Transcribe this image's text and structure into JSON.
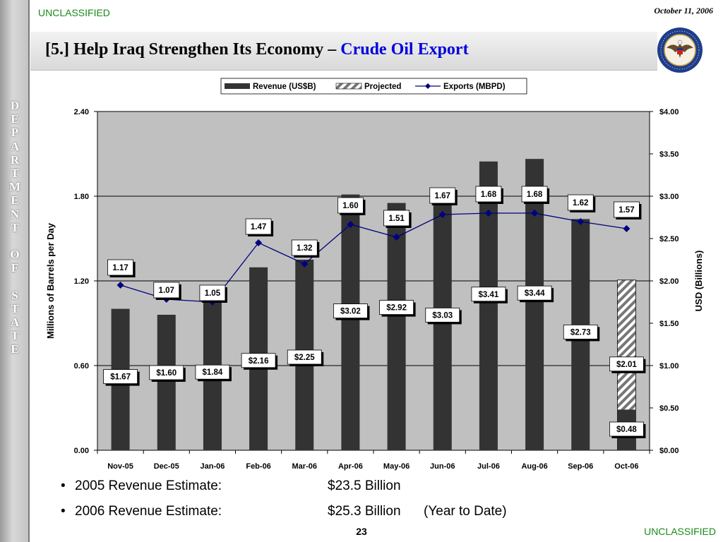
{
  "header": {
    "classification": "UNCLASSIFIED",
    "date": "October 11, 2006",
    "title_main": "[5.] Help Iraq Strengthen Its Economy – ",
    "title_accent": "Crude Oil Export"
  },
  "sidebar": {
    "letters": [
      "D",
      "E",
      "P",
      "A",
      "R",
      "T",
      "M",
      "E",
      "N",
      "T",
      "",
      "O",
      "F",
      "",
      "S",
      "T",
      "A",
      "T",
      "E"
    ]
  },
  "chart_data": {
    "type": "bar",
    "categories": [
      "Nov-05",
      "Dec-05",
      "Jan-06",
      "Feb-06",
      "Mar-06",
      "Apr-06",
      "May-06",
      "Jun-06",
      "Jul-06",
      "Aug-06",
      "Sep-06",
      "Oct-06"
    ],
    "revenue_labels": [
      "$1.67",
      "$1.60",
      "$1.84",
      "$2.16",
      "$2.25",
      "$3.02",
      "$2.92",
      "$3.03",
      "$3.41",
      "$3.44",
      "$2.73",
      "$0.48"
    ],
    "export_labels": [
      "1.17",
      "1.07",
      "1.05",
      "1.47",
      "1.32",
      "1.60",
      "1.51",
      "1.67",
      "1.68",
      "1.68",
      "1.62",
      "1.57"
    ],
    "projected_label": "$2.01",
    "series": [
      {
        "name": "Revenue (US$B)",
        "axis": "right",
        "values": [
          1.67,
          1.6,
          1.84,
          2.16,
          2.25,
          3.02,
          2.92,
          3.03,
          3.41,
          3.44,
          2.73,
          0.48
        ]
      },
      {
        "name": "Projected",
        "axis": "right",
        "values": [
          null,
          null,
          null,
          null,
          null,
          null,
          null,
          null,
          null,
          null,
          null,
          2.01
        ]
      },
      {
        "name": "Exports (MBPD)",
        "axis": "left",
        "values": [
          1.17,
          1.07,
          1.05,
          1.47,
          1.32,
          1.6,
          1.51,
          1.67,
          1.68,
          1.68,
          1.62,
          1.57
        ]
      }
    ],
    "ylabel": "Millions of Barrels per Day",
    "ylabel_right": "USD (Billions)",
    "ylim": [
      0,
      2.4
    ],
    "ylim_right": [
      0,
      4.0
    ],
    "yticks": [
      "0.00",
      "0.60",
      "1.20",
      "1.80",
      "2.40"
    ],
    "yticks_right": [
      "$0.00",
      "$0.50",
      "$1.00",
      "$1.50",
      "$2.00",
      "$2.50",
      "$3.00",
      "$3.50",
      "$4.00"
    ],
    "legend_position": "top-center",
    "colors": {
      "plot_bg": "#c0c0c0",
      "bar": "#333333",
      "line": "#000080"
    }
  },
  "bullets": [
    {
      "label": "2005 Revenue Estimate:",
      "value": "$23.5 Billion",
      "note": ""
    },
    {
      "label": "2006 Revenue Estimate:",
      "value": "$25.3 Billion",
      "note": "(Year to Date)"
    }
  ],
  "footer": {
    "page": "23",
    "classification": "UNCLASSIFIED"
  },
  "seal": {
    "kind": "department-of-state-seal"
  }
}
